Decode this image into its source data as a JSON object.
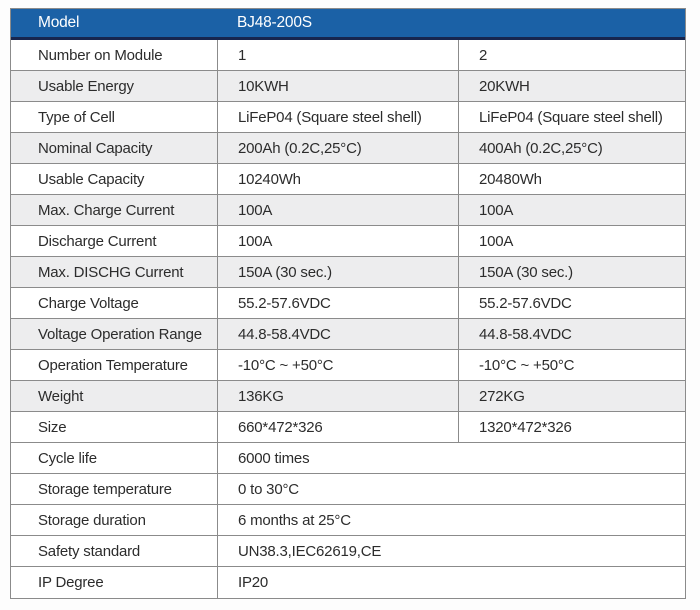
{
  "table": {
    "header": {
      "label": "Model",
      "value": "BJ48-200S"
    },
    "rows": [
      {
        "label": "Number on Module",
        "v1": "1",
        "v2": "2"
      },
      {
        "label": "Usable Energy",
        "v1": "10KWH",
        "v2": "20KWH"
      },
      {
        "label": "Type of Cell",
        "v1": "LiFeP04 (Square steel shell)",
        "v2": "LiFeP04 (Square steel shell)"
      },
      {
        "label": "Nominal Capacity",
        "v1": "200Ah (0.2C,25°C)",
        "v2": "400Ah (0.2C,25°C)"
      },
      {
        "label": "Usable Capacity",
        "v1": "10240Wh",
        "v2": "20480Wh"
      },
      {
        "label": "Max. Charge Current",
        "v1": "100A",
        "v2": "100A"
      },
      {
        "label": "Discharge Current",
        "v1": "100A",
        "v2": "100A"
      },
      {
        "label": "Max. DISCHG Current",
        "v1": "150A (30 sec.)",
        "v2": "150A (30 sec.)"
      },
      {
        "label": "Charge Voltage",
        "v1": "55.2-57.6VDC",
        "v2": "55.2-57.6VDC"
      },
      {
        "label": "Voltage Operation Range",
        "v1": "44.8-58.4VDC",
        "v2": "44.8-58.4VDC"
      },
      {
        "label": "Operation Temperature",
        "v1": "-10°C ~ +50°C",
        "v2": "-10°C ~ +50°C"
      },
      {
        "label": "Weight",
        "v1": "136KG",
        "v2": "272KG"
      },
      {
        "label": "Size",
        "v1": "660*472*326",
        "v2": "1320*472*326"
      }
    ],
    "span_rows": [
      {
        "label": "Cycle life",
        "value": "6000 times"
      },
      {
        "label": "Storage temperature",
        "value": "0 to 30°C"
      },
      {
        "label": "Storage duration",
        "value": "6 months at 25°C"
      },
      {
        "label": "Safety standard",
        "value": "UN38.3,IEC62619,CE"
      },
      {
        "label": "IP Degree",
        "value": "IP20"
      }
    ]
  },
  "colors": {
    "header_bg": "#1b61a6",
    "header_border": "#17264f",
    "header_text": "#ffffff",
    "alt_row_bg": "#ededee",
    "grid_border": "#8b8b8b",
    "text": "#2c2c2c"
  }
}
